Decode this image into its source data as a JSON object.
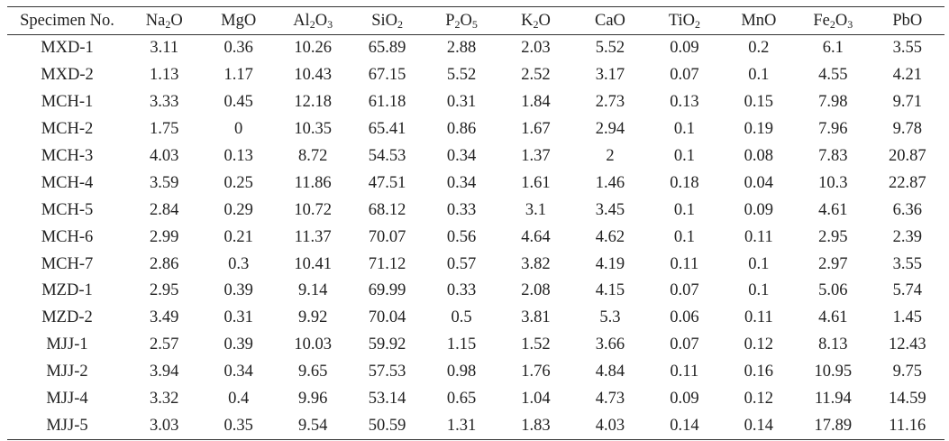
{
  "table": {
    "headers": [
      {
        "base": "Specimen No.",
        "parts": []
      },
      {
        "base": "",
        "parts": [
          [
            "Na",
            ""
          ],
          [
            "",
            "2"
          ],
          [
            "O",
            ""
          ]
        ]
      },
      {
        "base": "MgO",
        "parts": []
      },
      {
        "base": "",
        "parts": [
          [
            "Al",
            ""
          ],
          [
            "",
            "2"
          ],
          [
            "O",
            ""
          ],
          [
            "",
            "3"
          ]
        ]
      },
      {
        "base": "",
        "parts": [
          [
            "SiO",
            ""
          ],
          [
            "",
            "2"
          ]
        ]
      },
      {
        "base": "",
        "parts": [
          [
            "P",
            ""
          ],
          [
            "",
            "2"
          ],
          [
            "O",
            ""
          ],
          [
            "",
            "5"
          ]
        ]
      },
      {
        "base": "",
        "parts": [
          [
            "K",
            ""
          ],
          [
            "",
            "2"
          ],
          [
            "O",
            ""
          ]
        ]
      },
      {
        "base": "CaO",
        "parts": []
      },
      {
        "base": "",
        "parts": [
          [
            "TiO",
            ""
          ],
          [
            "",
            "2"
          ]
        ]
      },
      {
        "base": "MnO",
        "parts": []
      },
      {
        "base": "",
        "parts": [
          [
            "Fe",
            ""
          ],
          [
            "",
            "2"
          ],
          [
            "O",
            ""
          ],
          [
            "",
            "3"
          ]
        ]
      },
      {
        "base": "PbO",
        "parts": []
      }
    ],
    "rows": [
      [
        "MXD-1",
        "3.11",
        "0.36",
        "10.26",
        "65.89",
        "2.88",
        "2.03",
        "5.52",
        "0.09",
        "0.2",
        "6.1",
        "3.55"
      ],
      [
        "MXD-2",
        "1.13",
        "1.17",
        "10.43",
        "67.15",
        "5.52",
        "2.52",
        "3.17",
        "0.07",
        "0.1",
        "4.55",
        "4.21"
      ],
      [
        "MCH-1",
        "3.33",
        "0.45",
        "12.18",
        "61.18",
        "0.31",
        "1.84",
        "2.73",
        "0.13",
        "0.15",
        "7.98",
        "9.71"
      ],
      [
        "MCH-2",
        "1.75",
        "0",
        "10.35",
        "65.41",
        "0.86",
        "1.67",
        "2.94",
        "0.1",
        "0.19",
        "7.96",
        "9.78"
      ],
      [
        "MCH-3",
        "4.03",
        "0.13",
        "8.72",
        "54.53",
        "0.34",
        "1.37",
        "2",
        "0.1",
        "0.08",
        "7.83",
        "20.87"
      ],
      [
        "MCH-4",
        "3.59",
        "0.25",
        "11.86",
        "47.51",
        "0.34",
        "1.61",
        "1.46",
        "0.18",
        "0.04",
        "10.3",
        "22.87"
      ],
      [
        "MCH-5",
        "2.84",
        "0.29",
        "10.72",
        "68.12",
        "0.33",
        "3.1",
        "3.45",
        "0.1",
        "0.09",
        "4.61",
        "6.36"
      ],
      [
        "MCH-6",
        "2.99",
        "0.21",
        "11.37",
        "70.07",
        "0.56",
        "4.64",
        "4.62",
        "0.1",
        "0.11",
        "2.95",
        "2.39"
      ],
      [
        "MCH-7",
        "2.86",
        "0.3",
        "10.41",
        "71.12",
        "0.57",
        "3.82",
        "4.19",
        "0.11",
        "0.1",
        "2.97",
        "3.55"
      ],
      [
        "MZD-1",
        "2.95",
        "0.39",
        "9.14",
        "69.99",
        "0.33",
        "2.08",
        "4.15",
        "0.07",
        "0.1",
        "5.06",
        "5.74"
      ],
      [
        "MZD-2",
        "3.49",
        "0.31",
        "9.92",
        "70.04",
        "0.5",
        "3.81",
        "5.3",
        "0.06",
        "0.11",
        "4.61",
        "1.45"
      ],
      [
        "MJJ-1",
        "2.57",
        "0.39",
        "10.03",
        "59.92",
        "1.15",
        "1.52",
        "3.66",
        "0.07",
        "0.12",
        "8.13",
        "12.43"
      ],
      [
        "MJJ-2",
        "3.94",
        "0.34",
        "9.65",
        "57.53",
        "0.98",
        "1.76",
        "4.84",
        "0.11",
        "0.16",
        "10.95",
        "9.75"
      ],
      [
        "MJJ-4",
        "3.32",
        "0.4",
        "9.96",
        "53.14",
        "0.65",
        "1.04",
        "4.73",
        "0.09",
        "0.12",
        "11.94",
        "14.59"
      ],
      [
        "MJJ-5",
        "3.03",
        "0.35",
        "9.54",
        "50.59",
        "1.31",
        "1.83",
        "4.03",
        "0.14",
        "0.14",
        "17.89",
        "11.16"
      ]
    ]
  }
}
